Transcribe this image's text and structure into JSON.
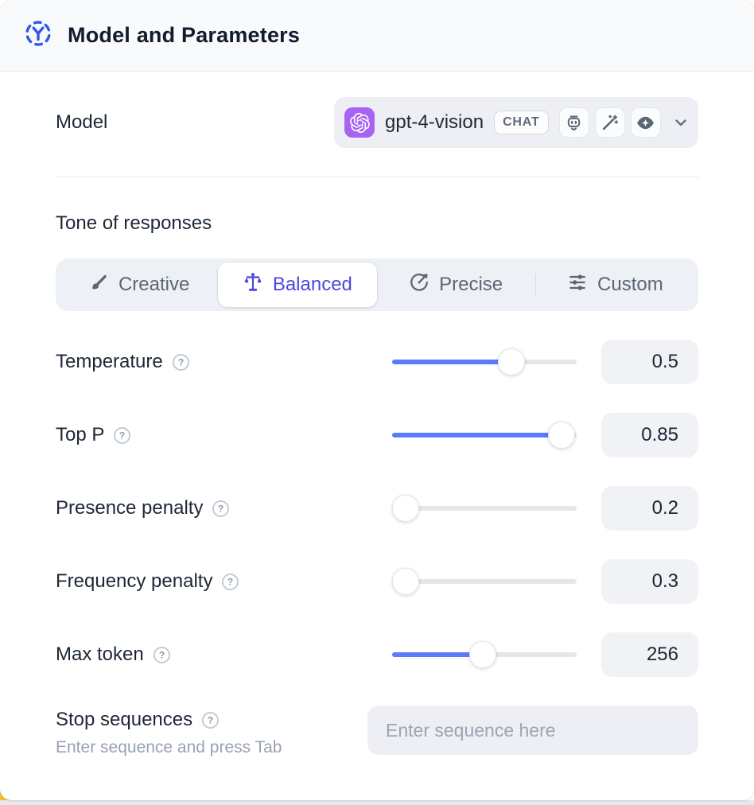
{
  "header": {
    "title": "Model and Parameters",
    "icon": "model-scope-icon"
  },
  "model": {
    "label": "Model",
    "selected_model": "gpt-4-vision",
    "provider_icon": "openai-logo-icon",
    "type_badge": "CHAT",
    "capability_icons": [
      "robot-icon",
      "magic-wand-icon",
      "vision-eye-icon"
    ],
    "chevron_icon": "chevron-down-icon"
  },
  "tone": {
    "heading": "Tone of responses",
    "options": [
      {
        "label": "Creative",
        "icon": "paintbrush-icon",
        "selected": false
      },
      {
        "label": "Balanced",
        "icon": "balance-scale-icon",
        "selected": true
      },
      {
        "label": "Precise",
        "icon": "precision-target-icon",
        "selected": false
      },
      {
        "label": "Custom",
        "icon": "sliders-icon",
        "selected": false
      }
    ]
  },
  "parameters": [
    {
      "label": "Temperature",
      "value": "0.5",
      "slider_percent": 67
    },
    {
      "label": "Top P",
      "value": "0.85",
      "slider_percent": 99
    },
    {
      "label": "Presence penalty",
      "value": "0.2",
      "slider_percent": 0
    },
    {
      "label": "Frequency penalty",
      "value": "0.3",
      "slider_percent": 0
    },
    {
      "label": "Max token",
      "value": "256",
      "slider_percent": 49
    }
  ],
  "stop_sequences": {
    "label": "Stop sequences",
    "hint": "Enter sequence and press Tab",
    "placeholder": "Enter sequence here"
  },
  "colors": {
    "accent_blue": "#5b7bfa",
    "accent_indigo": "#4b46dd",
    "openai_purple": "#a763f1",
    "header_icon_blue": "#2e58ea",
    "corner_yellow": "#e7c432",
    "control_bg": "#edeff4",
    "header_bg": "#f8fafc"
  }
}
